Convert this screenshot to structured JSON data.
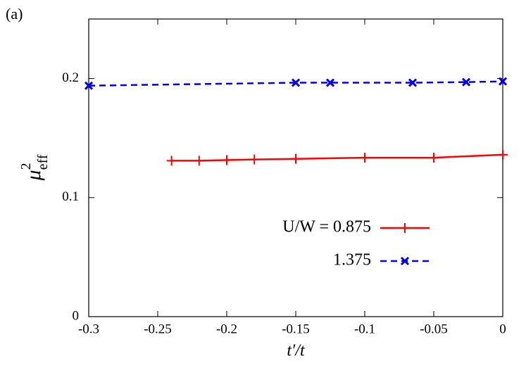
{
  "chart_data": {
    "type": "line",
    "annotation": "(a)",
    "xlabel": "t′/t",
    "ylabel": {
      "base": "μ",
      "sup": "2",
      "sub": "eff"
    },
    "xlim": [
      -0.3,
      0
    ],
    "xticks": [
      -0.3,
      -0.25,
      -0.2,
      -0.15,
      -0.1,
      -0.05,
      0
    ],
    "ylim": [
      0,
      0.25
    ],
    "yticks": [
      0,
      0.1,
      0.2
    ],
    "legend": "lower right",
    "series": [
      {
        "name": "U/W = 0.875",
        "color": "#ff0000",
        "marker": "plus",
        "dash": "solid",
        "x": [
          -0.24,
          -0.22,
          -0.2,
          -0.18,
          -0.15,
          -0.1,
          -0.05,
          0
        ],
        "values": [
          0.131,
          0.131,
          0.1315,
          0.132,
          0.1325,
          0.1335,
          0.1335,
          0.136
        ]
      },
      {
        "name": "1.375",
        "color": "#0000ee",
        "marker": "cross",
        "dash": "dashed",
        "x": [
          -0.3,
          -0.15,
          -0.125,
          -0.0653,
          -0.0265,
          0
        ],
        "values": [
          0.194,
          0.1965,
          0.1965,
          0.1965,
          0.197,
          0.1976
        ]
      }
    ]
  }
}
